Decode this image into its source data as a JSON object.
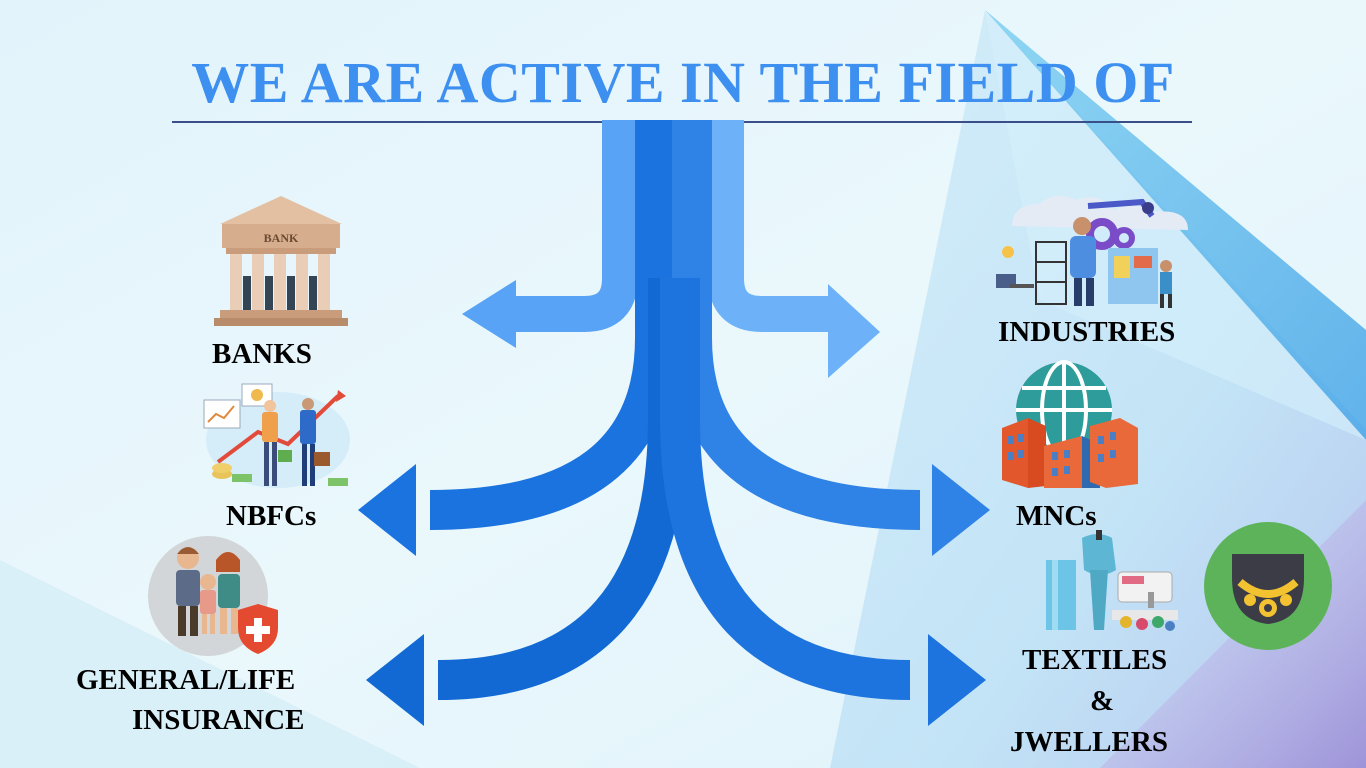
{
  "title": "WE ARE ACTIVE IN THE FIELD OF",
  "left_fields": [
    {
      "label": "BANKS",
      "icon": "bank-icon"
    },
    {
      "label": "NBFCs",
      "icon": "finance-meeting-icon"
    },
    {
      "label_line1": "GENERAL/LIFE",
      "label_line2": "INSURANCE",
      "icon": "family-insurance-icon"
    }
  ],
  "right_fields": [
    {
      "label": "INDUSTRIES",
      "icon": "industry-workers-icon"
    },
    {
      "label": "MNCs",
      "icon": "globe-buildings-icon"
    },
    {
      "label_line1": "TEXTILES",
      "label_line2": "&",
      "label_line3": "JWELLERS",
      "icon": "sewing-machine-icon",
      "icon2": "necklace-icon"
    }
  ],
  "bank_sign": "BANK",
  "colors": {
    "title": "#3d8ff0",
    "arrow_light": "#5aa2f5",
    "arrow_dark": "#1a6fdc",
    "label": "#000000"
  }
}
